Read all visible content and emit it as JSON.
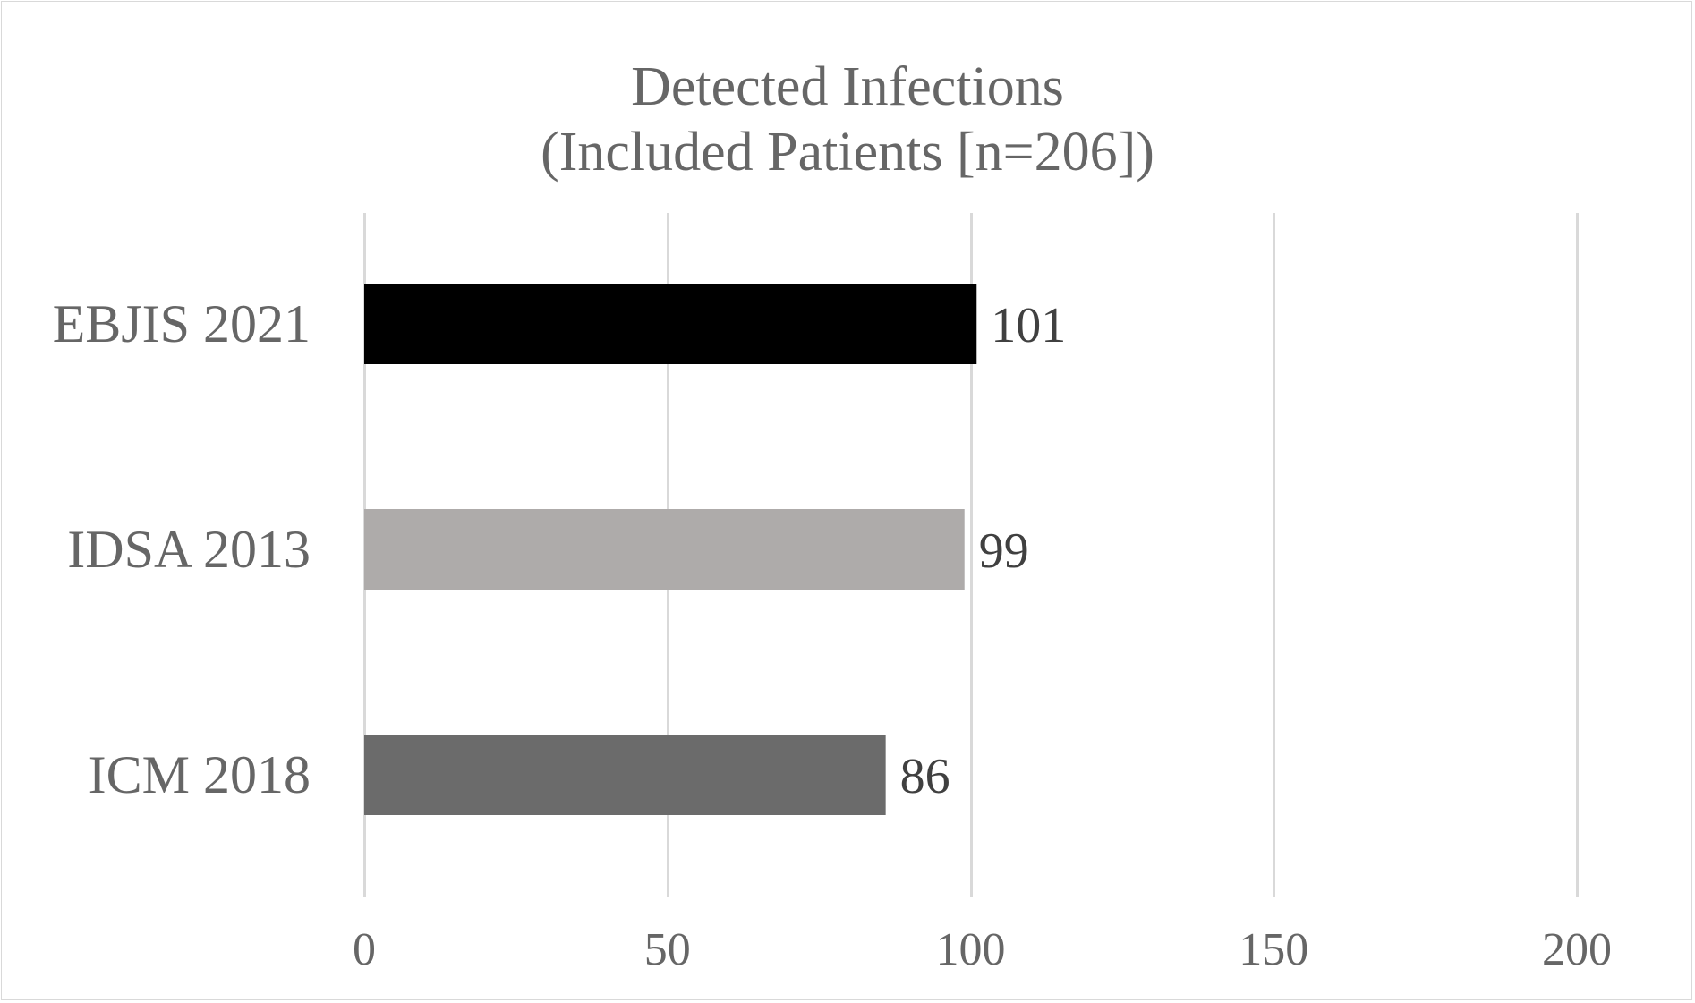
{
  "chart_data": {
    "type": "bar",
    "orientation": "horizontal",
    "title": "Detected Infections",
    "subtitle": "(Included Patients [n=206])",
    "categories": [
      "EBJIS 2021",
      "IDSA 2013",
      "ICM 2018"
    ],
    "values": [
      101,
      99,
      86
    ],
    "bar_colors": [
      "#000000",
      "#aeabaa",
      "#6b6b6b"
    ],
    "xlim": [
      0,
      200
    ],
    "xticks": [
      "0",
      "50",
      "100",
      "150",
      "200"
    ],
    "xtick_values": [
      0,
      50,
      100,
      150,
      200
    ],
    "data_labels": [
      "101",
      "99",
      "86"
    ],
    "grid": true,
    "legend": "none",
    "xlabel": "",
    "ylabel": ""
  },
  "colors": {
    "text": "#666666",
    "data_label": "#404040",
    "grid": "#d9d9d9",
    "border": "#d9d9d9"
  }
}
